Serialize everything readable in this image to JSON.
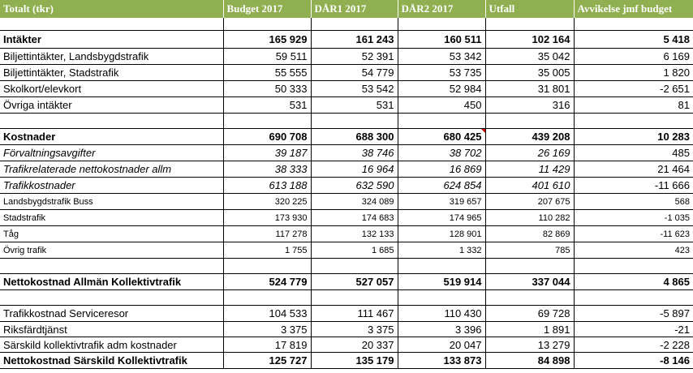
{
  "columns": [
    "Totalt (tkr)",
    "Budget 2017",
    "DÅR1 2017",
    "DÅR2 2017",
    "Utfall",
    "Avvikelse jmf budget"
  ],
  "rows": {
    "intakter": [
      "Intäkter",
      "165 929",
      "161 243",
      "160 511",
      "102 164",
      "5 418"
    ],
    "biljett_land": [
      "Biljettintäkter, Landsbygdstrafik",
      "59 511",
      "52 391",
      "53 342",
      "35 042",
      "6 169"
    ],
    "biljett_stad": [
      "Biljettintäkter, Stadstrafik",
      "55 555",
      "54 779",
      "53 735",
      "35 005",
      "1 820"
    ],
    "skolkort": [
      "Skolkort/elevkort",
      "50 333",
      "53 542",
      "52 984",
      "31 801",
      "-2 651"
    ],
    "ovriga_intakter": [
      "Övriga intäkter",
      "531",
      "531",
      "450",
      "316",
      "81"
    ],
    "kostnader": [
      "Kostnader",
      "690 708",
      "688 300",
      "680 425",
      "439 208",
      "10 283"
    ],
    "forvaltning": [
      "Förvaltningsavgifter",
      "39 187",
      "38 746",
      "38 702",
      "26 169",
      "485"
    ],
    "trafikrel": [
      "Trafikrelaterade nettokostnader allm",
      "38 333",
      "16 964",
      "16 869",
      "11 429",
      "21 464"
    ],
    "trafikkost": [
      "Trafikkostnader",
      "613 188",
      "632 590",
      "624 854",
      "401 610",
      "-11 666"
    ],
    "landsbygd_buss": [
      "Landsbygdstrafik Buss",
      "320 225",
      "324 089",
      "319 657",
      "207 675",
      "568"
    ],
    "stadstrafik": [
      "Stadstrafik",
      "173 930",
      "174 683",
      "174 965",
      "110 282",
      "-1 035"
    ],
    "tag": [
      "Tåg",
      "117 278",
      "132 133",
      "128 901",
      "82 869",
      "-11 623"
    ],
    "ovrig_trafik": [
      "Övrig trafik",
      "1 755",
      "1 685",
      "1 332",
      "785",
      "423"
    ],
    "netto_allman": [
      "Nettokostnad Allmän Kollektivtrafik",
      "524 779",
      "527 057",
      "519 914",
      "337 044",
      "4 865"
    ],
    "serviceresor": [
      "Trafikkostnad Serviceresor",
      "104 533",
      "111 467",
      "110 430",
      "69 728",
      "-5 897"
    ],
    "riksfard": [
      "Riksfärdtjänst",
      "3 375",
      "3 375",
      "3 396",
      "1 891",
      "-21"
    ],
    "sarskild_adm": [
      "Särskild kollektivtrafik adm kostnader",
      "17 819",
      "20 337",
      "20 047",
      "13 279",
      "-2 228"
    ],
    "netto_sarskild": [
      "Nettokostnad Särskild Kollektivtrafik",
      "125 727",
      "135 179",
      "133 873",
      "84 898",
      "-8 146"
    ]
  },
  "colors": {
    "header_bg": "#8faf50",
    "header_text": "#ffffff",
    "comment_marker": "#d00000"
  }
}
